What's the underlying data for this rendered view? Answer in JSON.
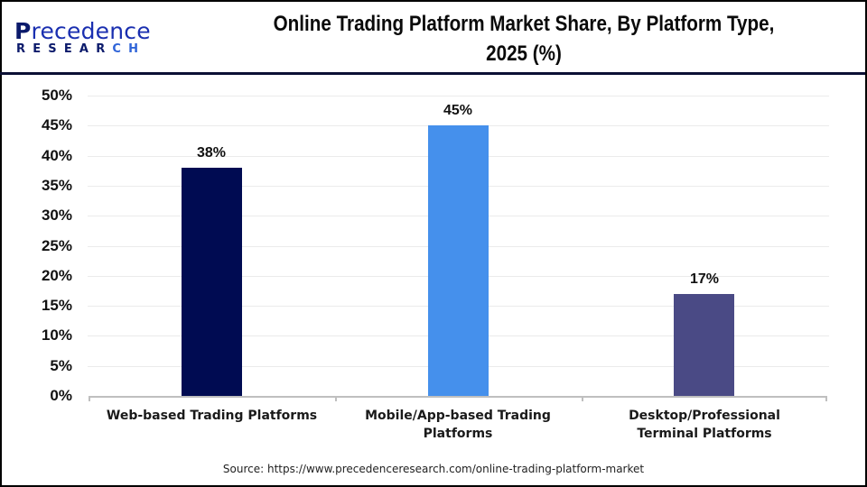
{
  "header": {
    "logo": {
      "top_text_first": "P",
      "top_text_rest": "recedence",
      "bottom_text_main": "RESEAR",
      "bottom_text_accent": "CH"
    },
    "title_line1": "Online Trading Platform Market Share, By Platform Type,",
    "title_line2": "2025 (%)"
  },
  "colors": {
    "web": "#000b52",
    "mobile": "#4590ec",
    "desktop": "#4a4a85",
    "header_line": "#0b1035",
    "gridline": "#ebebeb",
    "axis": "#bfbfbf"
  },
  "y_ticks": [
    "50%",
    "45%",
    "40%",
    "35%",
    "30%",
    "25%",
    "20%",
    "15%",
    "10%",
    "5%",
    "0%"
  ],
  "bars": [
    {
      "category": "Web-based Trading Platforms",
      "value": 38,
      "label": "38%"
    },
    {
      "category": "Mobile/App-based Trading Platforms",
      "value": 45,
      "label": "45%"
    },
    {
      "category": "Desktop/Professional Terminal Platforms",
      "value": 17,
      "label": "17%"
    }
  ],
  "source": "Source: https://www.precedenceresearch.com/online-trading-platform-market",
  "chart_data": {
    "type": "bar",
    "title": "Online Trading Platform Market Share, By Platform Type, 2025 (%)",
    "categories": [
      "Web-based Trading Platforms",
      "Mobile/App-based Trading Platforms",
      "Desktop/Professional Terminal Platforms"
    ],
    "values": [
      38,
      45,
      17
    ],
    "data_labels": [
      "38%",
      "45%",
      "17%"
    ],
    "colors": [
      "#000b52",
      "#4590ec",
      "#4a4a85"
    ],
    "xlabel": "",
    "ylabel": "",
    "ylim": [
      0,
      50
    ],
    "ytick_step": 5,
    "ytick_format": "percent",
    "grid": true,
    "legend": "none",
    "source": "Source: https://www.precedenceresearch.com/online-trading-platform-market"
  }
}
